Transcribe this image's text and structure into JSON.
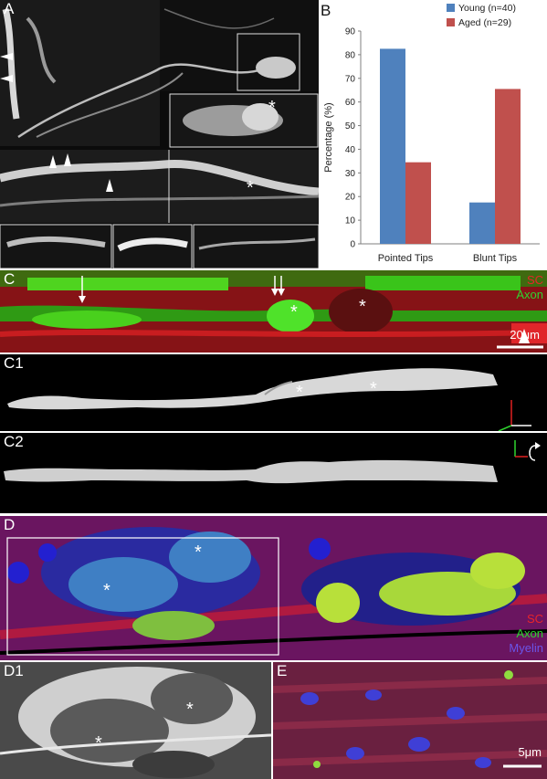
{
  "panel_labels": {
    "A": "A",
    "B": "B",
    "C": "C",
    "C1": "C1",
    "C2": "C2",
    "D": "D",
    "D1": "D1",
    "E": "E"
  },
  "asterisk": "*",
  "channels_c": {
    "sc": "SC",
    "axon": "Axon"
  },
  "channels_d": {
    "sc": "SC",
    "axon": "Axon",
    "myelin": "Myelin"
  },
  "scalebars": {
    "c": "20μm",
    "e": "5μm"
  },
  "colors": {
    "young": "#4f81bd",
    "aged": "#c0504d",
    "sc": "#e8252a",
    "axon": "#2fd42f",
    "myelin": "#6a55e8"
  },
  "chart_data": {
    "type": "bar",
    "categories": [
      "Pointed Tips",
      "Blunt Tips"
    ],
    "series": [
      {
        "name": "Young (n=40)",
        "values": [
          82.5,
          17.5
        ]
      },
      {
        "name": "Aged (n=29)",
        "values": [
          34.5,
          65.5
        ]
      }
    ],
    "ylabel": "Percentage (%)",
    "xlabel": "",
    "ylim": [
      0,
      90
    ],
    "yticks": [
      0,
      10,
      20,
      30,
      40,
      50,
      60,
      70,
      80,
      90
    ],
    "grid": false,
    "legend": "top"
  }
}
